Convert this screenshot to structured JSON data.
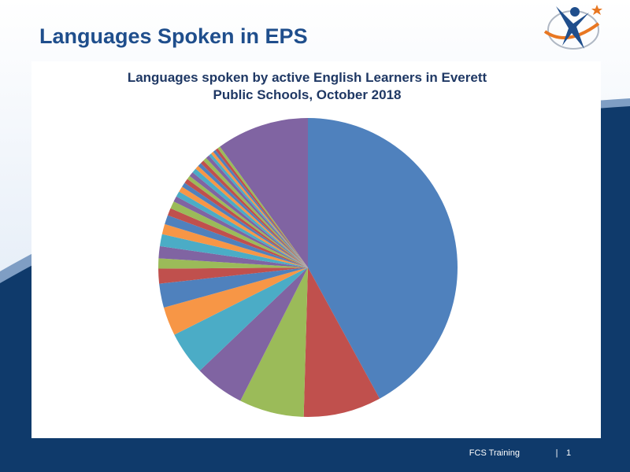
{
  "header": {
    "title": "Languages Spoken in EPS"
  },
  "footer": {
    "label": "FCS Training",
    "page": "1"
  },
  "chart_data": {
    "type": "pie",
    "title": "Languages spoken by active English Learners in Everett Public Schools, October 2018",
    "values": [
      42,
      8.4,
      7,
      5.4,
      4.7,
      3.1,
      2.6,
      1.6,
      1.1,
      1.3,
      1.3,
      1.1,
      1,
      0.8,
      0.8,
      0.6,
      0.6,
      0.6,
      0.5,
      0.5,
      0.4,
      0.5,
      0.5,
      0.4,
      0.4,
      0.4,
      0.4,
      0.4,
      0.3,
      0.3,
      0.3,
      0.3,
      0.3,
      10
    ],
    "colors": [
      "#4F81BD",
      "#C0504D",
      "#9BBB59",
      "#8064A2",
      "#4BACC6",
      "#F79646"
    ]
  }
}
